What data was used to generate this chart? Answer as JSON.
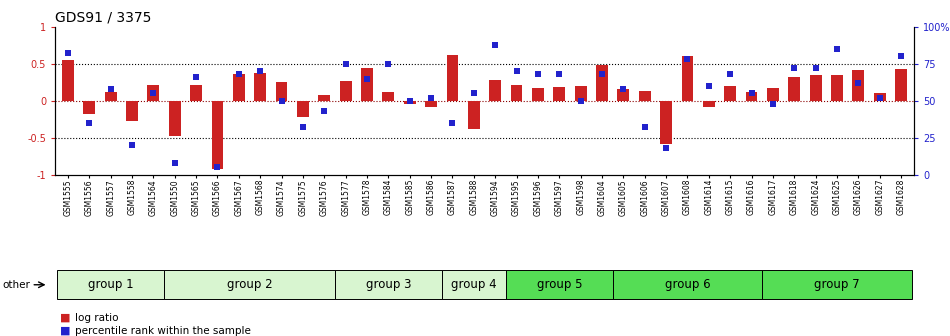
{
  "title": "GDS91 / 3375",
  "samples": [
    "GSM1555",
    "GSM1556",
    "GSM1557",
    "GSM1558",
    "GSM1564",
    "GSM1550",
    "GSM1565",
    "GSM1566",
    "GSM1567",
    "GSM1568",
    "GSM1574",
    "GSM1575",
    "GSM1576",
    "GSM1577",
    "GSM1578",
    "GSM1584",
    "GSM1585",
    "GSM1586",
    "GSM1587",
    "GSM1588",
    "GSM1594",
    "GSM1595",
    "GSM1596",
    "GSM1597",
    "GSM1598",
    "GSM1604",
    "GSM1605",
    "GSM1606",
    "GSM1607",
    "GSM1608",
    "GSM1614",
    "GSM1615",
    "GSM1616",
    "GSM1617",
    "GSM1618",
    "GSM1624",
    "GSM1625",
    "GSM1626",
    "GSM1627",
    "GSM1628"
  ],
  "log_ratio": [
    0.55,
    -0.18,
    0.12,
    -0.27,
    0.22,
    -0.48,
    0.22,
    -0.92,
    0.36,
    0.38,
    0.25,
    -0.22,
    0.08,
    0.27,
    0.44,
    0.12,
    -0.05,
    -0.08,
    0.62,
    -0.38,
    0.28,
    0.22,
    0.17,
    0.18,
    0.2,
    0.48,
    0.16,
    0.13,
    -0.58,
    0.6,
    -0.08,
    0.2,
    0.12,
    0.17,
    0.32,
    0.35,
    0.35,
    0.42,
    0.1,
    0.43
  ],
  "percentile": [
    82,
    35,
    58,
    20,
    55,
    8,
    66,
    5,
    68,
    70,
    50,
    32,
    43,
    75,
    65,
    75,
    50,
    52,
    35,
    55,
    88,
    70,
    68,
    68,
    50,
    68,
    58,
    32,
    18,
    78,
    60,
    68,
    55,
    48,
    72,
    72,
    85,
    62,
    52,
    80
  ],
  "groups": [
    {
      "name": "group 1",
      "start": 0,
      "end": 5,
      "color": "#d8f5d0"
    },
    {
      "name": "group 2",
      "start": 5,
      "end": 13,
      "color": "#d8f5d0"
    },
    {
      "name": "group 3",
      "start": 13,
      "end": 18,
      "color": "#d8f5d0"
    },
    {
      "name": "group 4",
      "start": 18,
      "end": 21,
      "color": "#d8f5d0"
    },
    {
      "name": "group 5",
      "start": 21,
      "end": 26,
      "color": "#55dd55"
    },
    {
      "name": "group 6",
      "start": 26,
      "end": 33,
      "color": "#55dd55"
    },
    {
      "name": "group 7",
      "start": 33,
      "end": 40,
      "color": "#55dd55"
    }
  ],
  "bar_color": "#cc2222",
  "dot_color": "#2222cc",
  "ylim": [
    -1,
    1
  ],
  "y_right_ticks": [
    0,
    25,
    50,
    75,
    100
  ],
  "y_right_labels": [
    "0",
    "25",
    "50",
    "75",
    "100%"
  ],
  "y_left_ticks": [
    -1,
    -0.5,
    0,
    0.5,
    1
  ],
  "hlines": [
    -0.5,
    0,
    0.5
  ],
  "title_fontsize": 10,
  "tick_fontsize": 7,
  "group_label_fontsize": 8.5
}
